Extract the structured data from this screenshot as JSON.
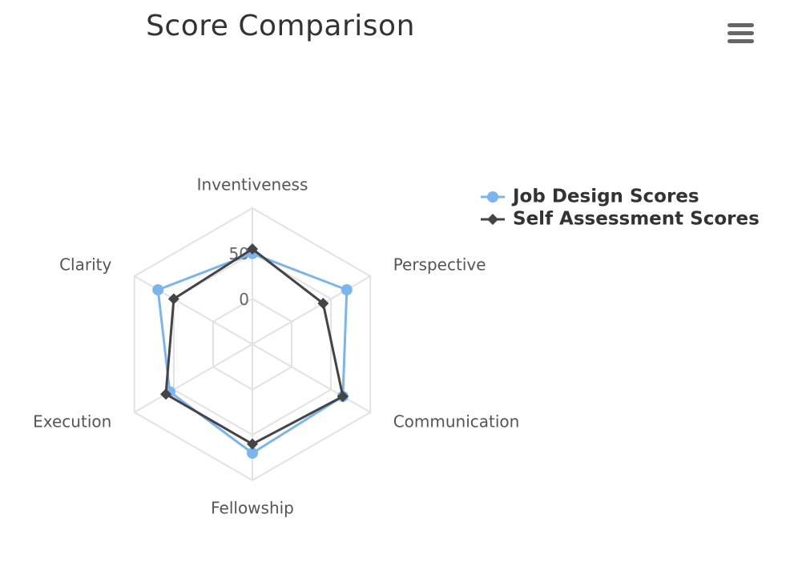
{
  "chart_data": {
    "type": "radar",
    "title": "Score Comparison",
    "categories": [
      "Inventiveness",
      "Perspective",
      "Communication",
      "Fellowship",
      "Execution",
      "Clarity"
    ],
    "radial_ticks": [
      "0",
      "50"
    ],
    "radial_range": [
      -50,
      100
    ],
    "grid": true,
    "legend": "top-right",
    "series": [
      {
        "name": "Job Design Scores",
        "values": [
          50,
          70,
          65,
          70,
          55,
          70
        ],
        "color": "#7cb5ec",
        "marker": "circle"
      },
      {
        "name": "Self Assessment Scores",
        "values": [
          55,
          40,
          65,
          60,
          60,
          50
        ],
        "color": "#434348",
        "marker": "diamond"
      }
    ]
  },
  "menu": {
    "icon": "hamburger-menu-icon"
  }
}
